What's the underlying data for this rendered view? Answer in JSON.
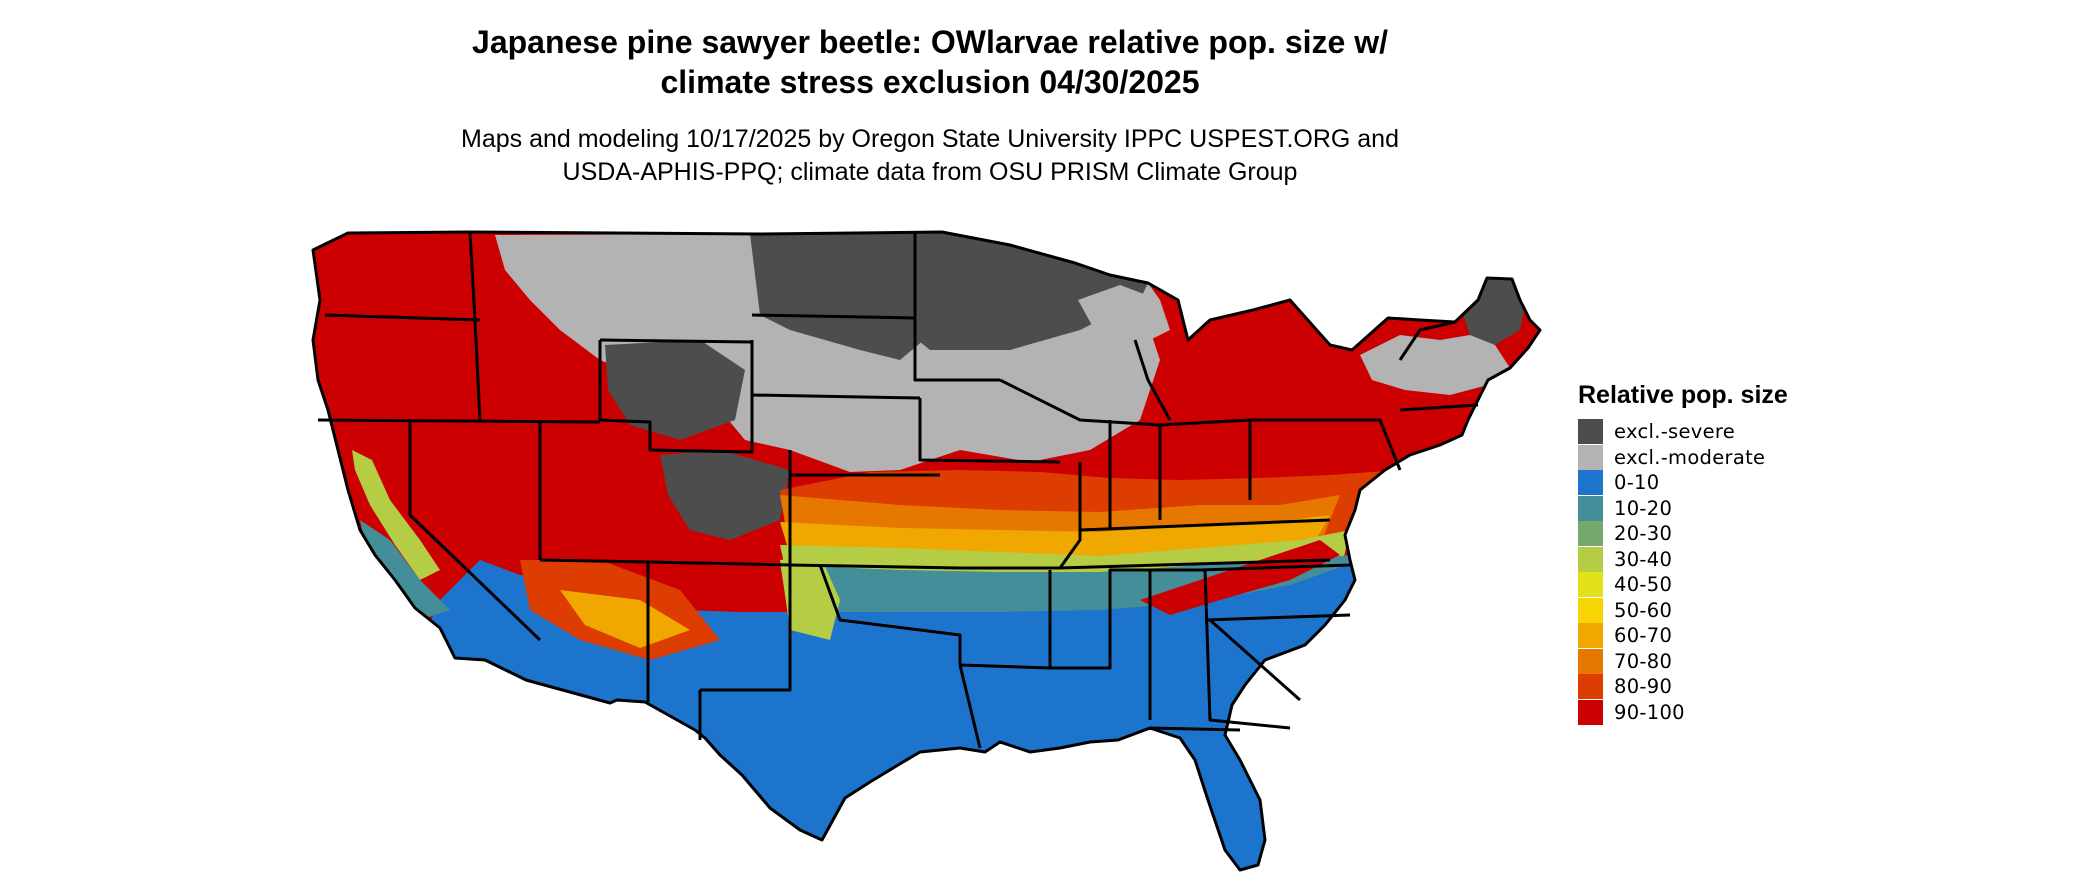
{
  "title": {
    "line1": "Japanese pine sawyer beetle: OWlarvae relative pop. size w/",
    "line2": "climate stress exclusion 04/30/2025"
  },
  "subtitle": {
    "line1": "Maps and modeling 10/17/2025 by Oregon State University IPPC USPEST.ORG and",
    "line2": "USDA-APHIS-PPQ; climate data from OSU PRISM Climate Group"
  },
  "legend": {
    "title": "Relative pop. size",
    "items": [
      {
        "label": "excl.-severe",
        "color": "#4d4d4d"
      },
      {
        "label": "excl.-moderate",
        "color": "#b3b3b3"
      },
      {
        "label": "0-10",
        "color": "#1c74cd"
      },
      {
        "label": "10-20",
        "color": "#448e9a"
      },
      {
        "label": "20-30",
        "color": "#74a86c"
      },
      {
        "label": "30-40",
        "color": "#b4cd44"
      },
      {
        "label": "40-50",
        "color": "#e2e21a"
      },
      {
        "label": "50-60",
        "color": "#f7d502"
      },
      {
        "label": "60-70",
        "color": "#f0a800"
      },
      {
        "label": "70-80",
        "color": "#e67800"
      },
      {
        "label": "80-90",
        "color": "#dd3d00"
      },
      {
        "label": "90-100",
        "color": "#cc0000"
      }
    ]
  },
  "map": {
    "region": "Contiguous United States",
    "boundary_color": "#000000"
  }
}
